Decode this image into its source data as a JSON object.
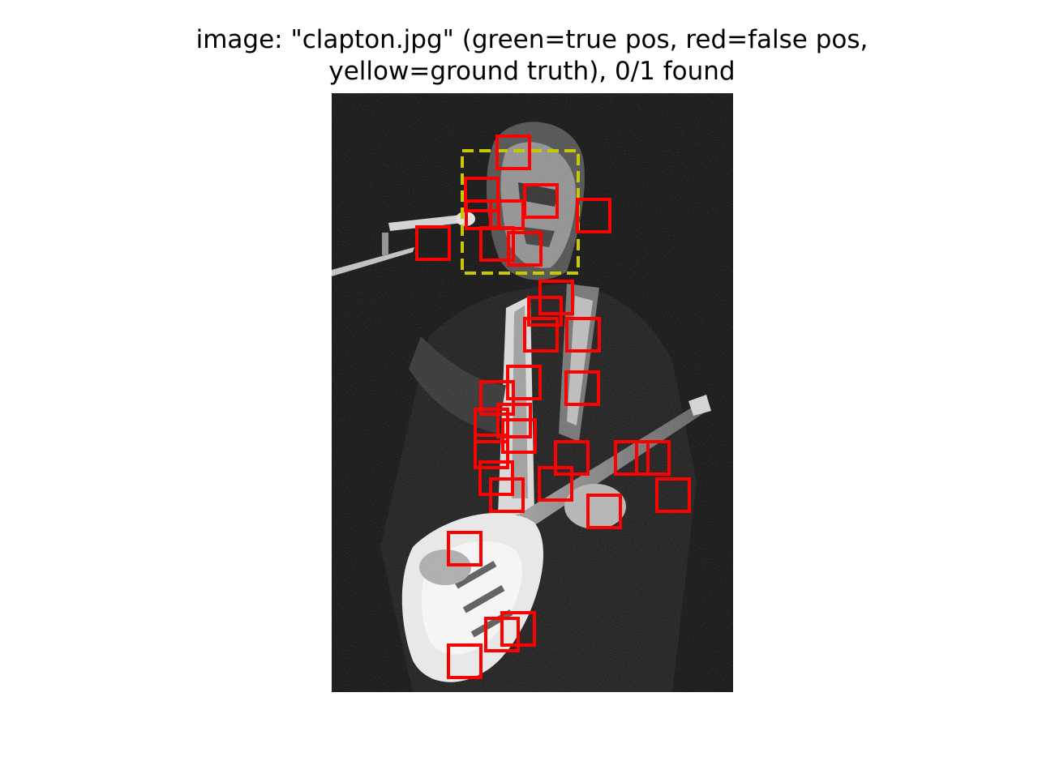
{
  "title": {
    "line1": "image: \"clapton.jpg\" (green=true pos, red=false pos,",
    "line2": "yellow=ground truth), 0/1 found"
  },
  "image": {
    "subject": "black and white photo of guitarist singing at microphone"
  },
  "detections": {
    "found": 0,
    "total": 1,
    "false_positive_count": 38,
    "true_positive_count": 0,
    "ground_truth_count": 1
  },
  "colors": {
    "true_positive": "#00c000",
    "false_positive": "#ff0000",
    "ground_truth": "#c8c800",
    "background": "#ffffff"
  }
}
